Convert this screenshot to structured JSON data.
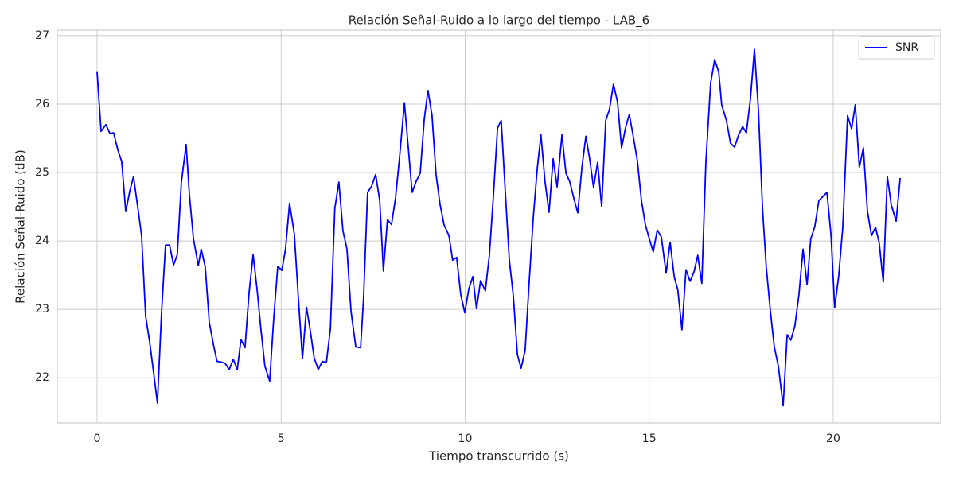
{
  "chart_data": {
    "type": "line",
    "title": "Relación Señal-Ruido a lo largo del tiempo - LAB_6",
    "x_label": "Tiempo transcurrido (s)",
    "y_label": "Relación Señal-Ruido (dB)",
    "x": [
      0,
      0.11,
      0.24,
      0.35,
      0.45,
      0.56,
      0.67,
      0.78,
      0.89,
      0.99,
      1.1,
      1.21,
      1.32,
      1.43,
      1.54,
      1.64,
      1.75,
      1.86,
      1.97,
      2.08,
      2.18,
      2.29,
      2.42,
      2.51,
      2.62,
      2.75,
      2.83,
      2.94,
      3.05,
      3.16,
      3.26,
      3.37,
      3.48,
      3.59,
      3.7,
      3.81,
      3.91,
      4.02,
      4.13,
      4.24,
      4.35,
      4.45,
      4.56,
      4.69,
      4.8,
      4.91,
      5.02,
      5.12,
      5.23,
      5.36,
      5.47,
      5.58,
      5.69,
      5.79,
      5.9,
      6.01,
      6.12,
      6.23,
      6.34,
      6.46,
      6.57,
      6.68,
      6.79,
      6.9,
      7.03,
      7.16,
      7.24,
      7.35,
      7.46,
      7.57,
      7.68,
      7.78,
      7.89,
      8.0,
      8.11,
      8.22,
      8.35,
      8.45,
      8.56,
      8.67,
      8.78,
      8.89,
      8.99,
      9.1,
      9.21,
      9.32,
      9.43,
      9.56,
      9.66,
      9.77,
      9.88,
      9.99,
      10.1,
      10.21,
      10.31,
      10.42,
      10.55,
      10.66,
      10.77,
      10.88,
      10.98,
      11.09,
      11.2,
      11.31,
      11.42,
      11.52,
      11.63,
      11.74,
      11.85,
      11.96,
      12.06,
      12.17,
      12.28,
      12.39,
      12.5,
      12.63,
      12.74,
      12.84,
      12.95,
      13.06,
      13.17,
      13.28,
      13.38,
      13.49,
      13.6,
      13.71,
      13.82,
      13.92,
      14.03,
      14.14,
      14.25,
      14.36,
      14.46,
      14.57,
      14.68,
      14.79,
      14.9,
      15.01,
      15.11,
      15.22,
      15.33,
      15.46,
      15.57,
      15.68,
      15.78,
      15.89,
      16.0,
      16.11,
      16.22,
      16.32,
      16.43,
      16.54,
      16.67,
      16.78,
      16.89,
      16.97,
      17.1,
      17.21,
      17.32,
      17.43,
      17.54,
      17.64,
      17.75,
      17.86,
      17.97,
      18.08,
      18.18,
      18.29,
      18.4,
      18.51,
      18.64,
      18.75,
      18.85,
      18.96,
      19.07,
      19.18,
      19.29,
      19.39,
      19.5,
      19.61,
      19.72,
      19.83,
      19.94,
      20.04,
      20.15,
      20.26,
      20.39,
      20.5,
      20.6,
      20.71,
      20.82,
      20.93,
      21.04,
      21.15,
      21.25,
      21.36,
      21.47,
      21.58,
      21.71,
      21.82
    ],
    "series": [
      {
        "name": "SNR",
        "color": "#0000ff",
        "values": [
          26.48,
          25.6,
          25.7,
          25.57,
          25.58,
          25.34,
          25.16,
          24.43,
          24.73,
          24.94,
          24.52,
          24.08,
          22.9,
          22.52,
          22.06,
          21.63,
          22.93,
          23.94,
          23.94,
          23.65,
          23.8,
          24.85,
          25.41,
          24.67,
          24.03,
          23.64,
          23.88,
          23.62,
          22.81,
          22.49,
          22.24,
          22.23,
          22.21,
          22.12,
          22.27,
          22.12,
          22.56,
          22.44,
          23.24,
          23.8,
          23.28,
          22.72,
          22.17,
          21.95,
          22.87,
          23.63,
          23.57,
          23.88,
          24.55,
          24.1,
          23.16,
          22.28,
          23.03,
          22.7,
          22.29,
          22.12,
          22.24,
          22.22,
          22.72,
          24.48,
          24.86,
          24.15,
          23.88,
          22.97,
          22.45,
          22.44,
          23.16,
          24.71,
          24.8,
          24.97,
          24.59,
          23.56,
          24.31,
          24.24,
          24.63,
          25.23,
          26.02,
          25.4,
          24.71,
          24.87,
          24.99,
          25.78,
          26.2,
          25.84,
          24.97,
          24.53,
          24.23,
          24.08,
          23.72,
          23.76,
          23.22,
          22.95,
          23.3,
          23.48,
          23.01,
          23.42,
          23.27,
          23.8,
          24.67,
          25.65,
          25.76,
          24.73,
          23.73,
          23.19,
          22.34,
          22.14,
          22.4,
          23.4,
          24.33,
          25.06,
          25.55,
          24.87,
          24.42,
          25.2,
          24.79,
          25.55,
          24.99,
          24.87,
          24.63,
          24.41,
          25.06,
          25.53,
          25.21,
          24.78,
          25.15,
          24.5,
          25.76,
          25.92,
          26.29,
          26.03,
          25.36,
          25.66,
          25.85,
          25.52,
          25.17,
          24.59,
          24.23,
          24.02,
          23.84,
          24.16,
          24.06,
          23.53,
          23.98,
          23.48,
          23.28,
          22.7,
          23.58,
          23.41,
          23.55,
          23.79,
          23.38,
          25.14,
          26.31,
          26.65,
          26.47,
          25.99,
          25.76,
          25.43,
          25.37,
          25.55,
          25.67,
          25.58,
          26.07,
          26.8,
          25.9,
          24.47,
          23.63,
          22.99,
          22.45,
          22.17,
          21.59,
          22.63,
          22.55,
          22.76,
          23.22,
          23.88,
          23.36,
          24.03,
          24.21,
          24.59,
          24.65,
          24.71,
          24.09,
          23.03,
          23.49,
          24.2,
          25.83,
          25.64,
          25.99,
          25.08,
          25.36,
          24.43,
          24.08,
          24.2,
          23.97,
          23.4,
          24.94,
          24.52,
          24.29,
          24.92
        ]
      }
    ],
    "xlim": [
      -1.08,
      22.92
    ],
    "ylim": [
      21.34,
      27.08
    ],
    "xticks": [
      0,
      5,
      10,
      15,
      20
    ],
    "yticks": [
      22,
      23,
      24,
      25,
      26,
      27
    ],
    "grid": true,
    "legend": "upper right"
  }
}
